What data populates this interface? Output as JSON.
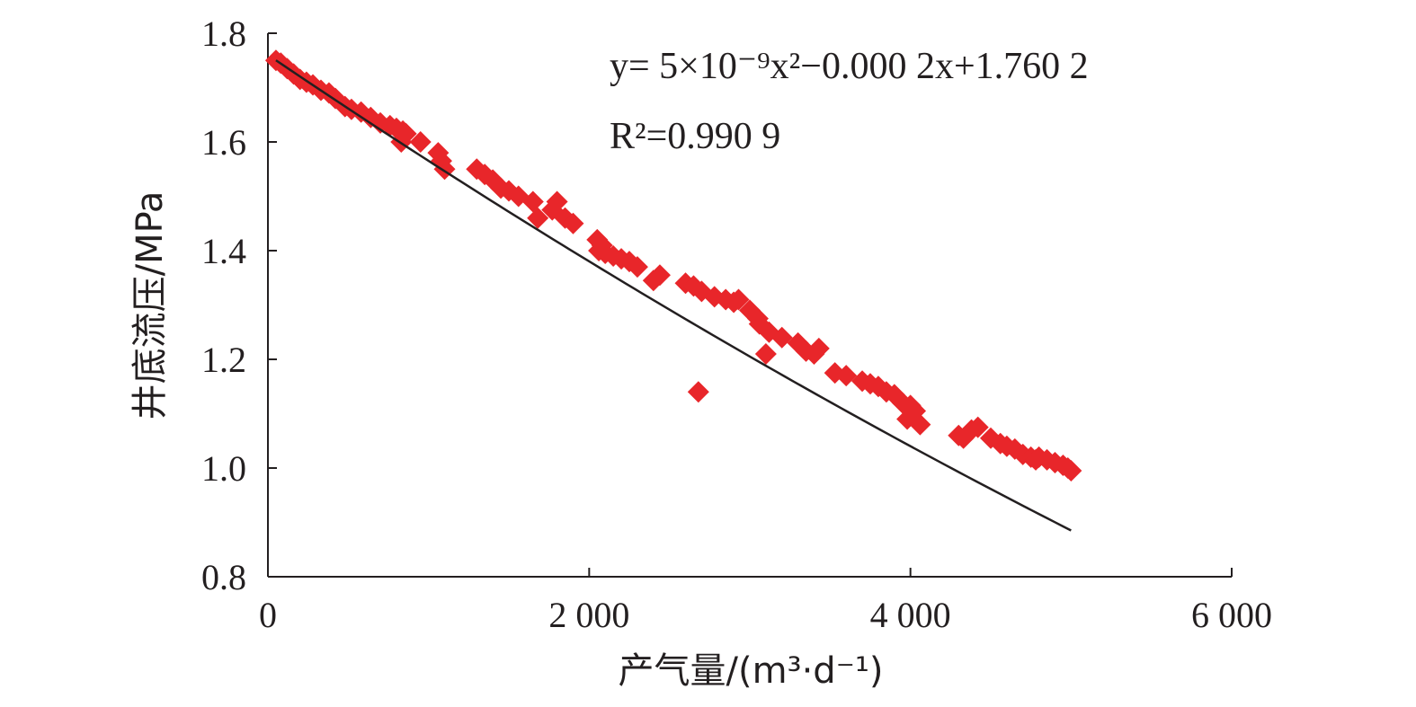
{
  "chart_data": {
    "type": "scatter",
    "xlabel": "产气量/(m³·d⁻¹)",
    "ylabel": "井底流压/MPa",
    "xlim": [
      0,
      6000
    ],
    "ylim": [
      0.8,
      1.8
    ],
    "x_ticks": [
      0,
      2000,
      4000,
      6000
    ],
    "x_tick_labels": [
      "0",
      "2 000",
      "4 000",
      "6 000"
    ],
    "y_ticks": [
      0.8,
      1.0,
      1.2,
      1.4,
      1.6,
      1.8
    ],
    "y_tick_labels": [
      "0.8",
      "1.0",
      "1.2",
      "1.4",
      "1.6",
      "1.8"
    ],
    "grid": false,
    "marker": "diamond",
    "colors": {
      "points": "#e8262a",
      "trendline": "#231f20",
      "axis": "#231f20"
    },
    "annotations": {
      "equation": "y= 5×10⁻⁹x²−0.000 2x+1.760 2",
      "r_squared": "R²=0.990 9"
    },
    "trendline": {
      "type": "polynomial",
      "a": 5e-09,
      "b": -0.0002,
      "c": 1.7602,
      "x_range": [
        50,
        5000
      ]
    },
    "series": [
      {
        "x": [
          50,
          80,
          120,
          160,
          200,
          240,
          280,
          330,
          380,
          420,
          480,
          520,
          580,
          640,
          700,
          760,
          800,
          830,
          840,
          860,
          950,
          1060,
          1080,
          1100,
          1300,
          1350,
          1400,
          1450,
          1500,
          1560,
          1650,
          1680,
          1770,
          1800,
          1850,
          1900,
          2050,
          2060,
          2080,
          2100,
          2150,
          2200,
          2250,
          2300,
          2400,
          2440,
          2600,
          2650,
          2700,
          2780,
          2850,
          2900,
          2930,
          3000,
          3050,
          3060,
          3100,
          3120,
          3200,
          3300,
          3350,
          3400,
          3430,
          3530,
          3600,
          3700,
          3750,
          3800,
          3850,
          3900,
          3950,
          3980,
          4000,
          4030,
          4060,
          4300,
          4330,
          4380,
          4420,
          4500,
          4560,
          4600,
          4650,
          4700,
          4750,
          4780,
          4800,
          4850,
          4900,
          4950,
          4980,
          5000,
          2680
        ],
        "y": [
          1.75,
          1.745,
          1.735,
          1.725,
          1.715,
          1.71,
          1.705,
          1.695,
          1.69,
          1.68,
          1.665,
          1.66,
          1.655,
          1.645,
          1.635,
          1.63,
          1.625,
          1.6,
          1.62,
          1.615,
          1.6,
          1.58,
          1.565,
          1.55,
          1.55,
          1.54,
          1.53,
          1.515,
          1.51,
          1.5,
          1.49,
          1.46,
          1.475,
          1.49,
          1.46,
          1.45,
          1.42,
          1.4,
          1.41,
          1.395,
          1.39,
          1.385,
          1.38,
          1.37,
          1.345,
          1.355,
          1.34,
          1.335,
          1.325,
          1.315,
          1.31,
          1.305,
          1.31,
          1.29,
          1.275,
          1.265,
          1.21,
          1.25,
          1.24,
          1.23,
          1.215,
          1.21,
          1.22,
          1.175,
          1.17,
          1.16,
          1.155,
          1.15,
          1.14,
          1.135,
          1.12,
          1.09,
          1.115,
          1.105,
          1.08,
          1.06,
          1.055,
          1.07,
          1.075,
          1.055,
          1.045,
          1.04,
          1.035,
          1.025,
          1.02,
          1.015,
          1.02,
          1.015,
          1.01,
          1.005,
          1.0,
          0.995,
          1.14
        ]
      }
    ]
  }
}
